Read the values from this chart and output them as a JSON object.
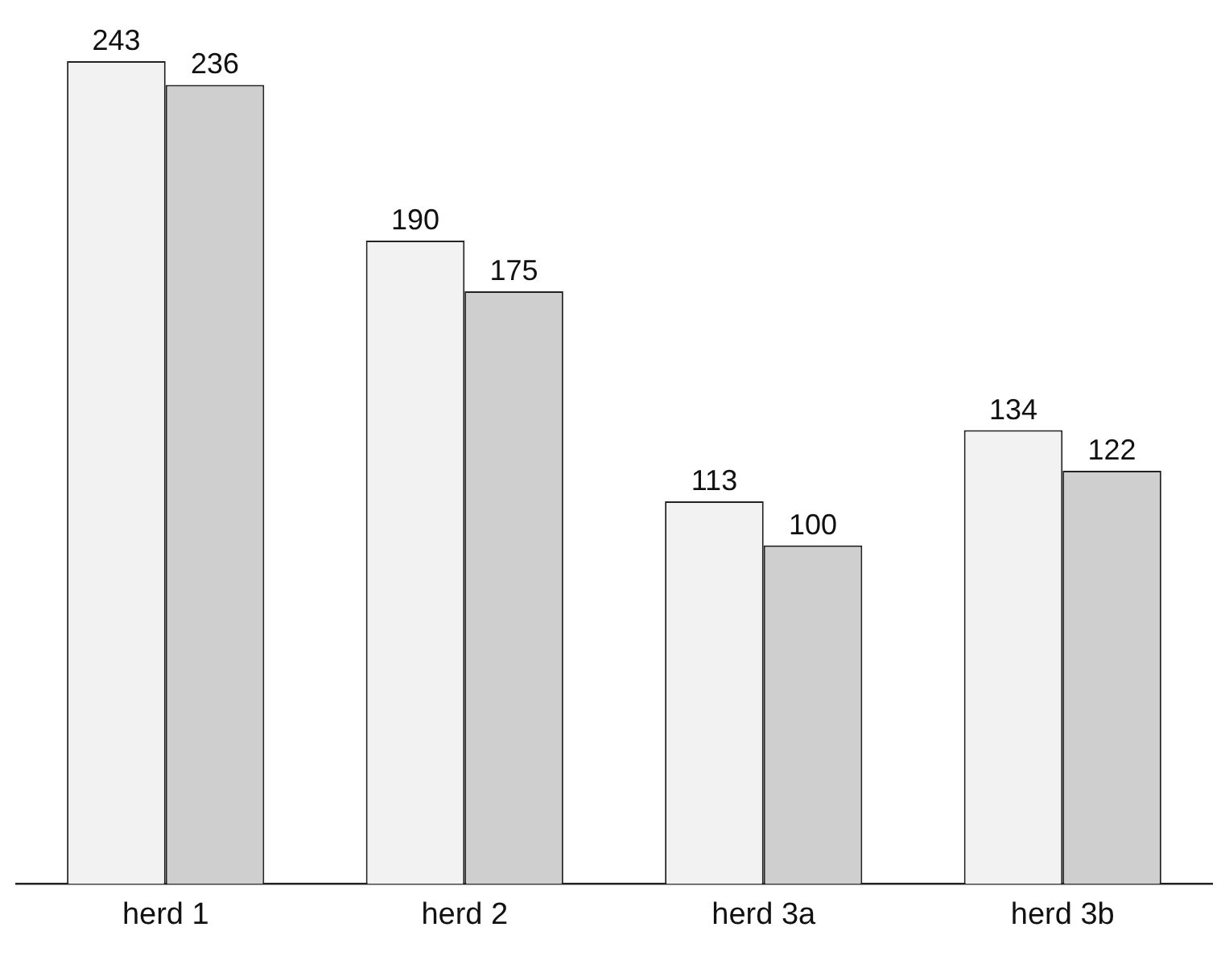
{
  "chart_data": {
    "type": "bar",
    "categories": [
      "herd 1",
      "herd 2",
      "herd 3a",
      "herd 3b"
    ],
    "series": [
      {
        "color": "#f2f2f2",
        "values": [
          243,
          190,
          113,
          134
        ]
      },
      {
        "color": "#cfcfcf",
        "values": [
          236,
          175,
          100,
          122
        ]
      }
    ],
    "data_labels": true,
    "grid": false,
    "legend": false,
    "tick_labels": "x"
  }
}
